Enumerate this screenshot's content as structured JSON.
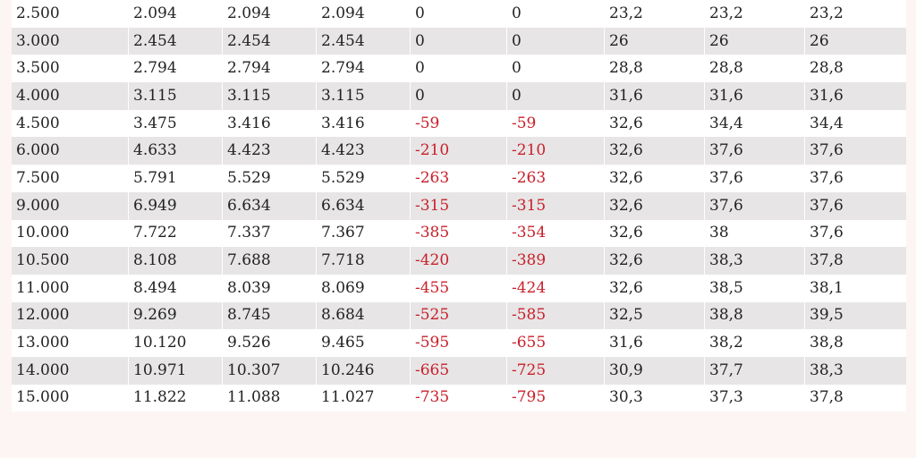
{
  "table": {
    "rows": [
      [
        "2.500",
        "2.094",
        "2.094",
        "2.094",
        "0",
        "0",
        "23,2",
        "23,2",
        "23,2"
      ],
      [
        "3.000",
        "2.454",
        "2.454",
        "2.454",
        "0",
        "0",
        "26",
        "26",
        "26"
      ],
      [
        "3.500",
        "2.794",
        "2.794",
        "2.794",
        "0",
        "0",
        "28,8",
        "28,8",
        "28,8"
      ],
      [
        "4.000",
        "3.115",
        "3.115",
        "3.115",
        "0",
        "0",
        "31,6",
        "31,6",
        "31,6"
      ],
      [
        "4.500",
        "3.475",
        "3.416",
        "3.416",
        "-59",
        "-59",
        "32,6",
        "34,4",
        "34,4"
      ],
      [
        "6.000",
        "4.633",
        "4.423",
        "4.423",
        "-210",
        "-210",
        "32,6",
        "37,6",
        "37,6"
      ],
      [
        "7.500",
        "5.791",
        "5.529",
        "5.529",
        "-263",
        "-263",
        "32,6",
        "37,6",
        "37,6"
      ],
      [
        "9.000",
        "6.949",
        "6.634",
        "6.634",
        "-315",
        "-315",
        "32,6",
        "37,6",
        "37,6"
      ],
      [
        "10.000",
        "7.722",
        "7.337",
        "7.367",
        "-385",
        "-354",
        "32,6",
        "38",
        "37,6"
      ],
      [
        "10.500",
        "8.108",
        "7.688",
        "7.718",
        "-420",
        "-389",
        "32,6",
        "38,3",
        "37,8"
      ],
      [
        "11.000",
        "8.494",
        "8.039",
        "8.069",
        "-455",
        "-424",
        "32,6",
        "38,5",
        "38,1"
      ],
      [
        "12.000",
        "9.269",
        "8.745",
        "8.684",
        "-525",
        "-585",
        "32,5",
        "38,8",
        "39,5"
      ],
      [
        "13.000",
        "10.120",
        "9.526",
        "9.465",
        "-595",
        "-655",
        "31,6",
        "38,2",
        "38,8"
      ],
      [
        "14.000",
        "10.971",
        "10.307",
        "10.246",
        "-665",
        "-725",
        "30,9",
        "37,7",
        "38,3"
      ],
      [
        "15.000",
        "11.822",
        "11.088",
        "11.027",
        "-735",
        "-795",
        "30,3",
        "37,3",
        "37,8"
      ]
    ]
  },
  "colors": {
    "negative": "#c8202a",
    "row_odd": "#ffffff",
    "row_even": "#e7e5e6",
    "page_background": "#fdf5f4"
  }
}
